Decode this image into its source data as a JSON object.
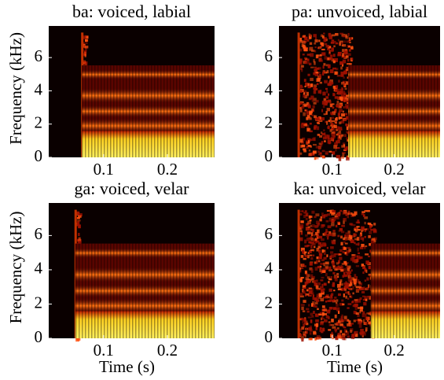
{
  "chart_data": [
    {
      "type": "spectrogram",
      "title": "ba: voiced, labial",
      "y_label": "Frequency (kHz)",
      "xlim": [
        0.014,
        0.274
      ],
      "xticks": [
        0.1,
        0.2
      ],
      "ylim": [
        0,
        7.9
      ],
      "yticks": [
        0,
        2,
        4,
        6
      ]
    },
    {
      "type": "spectrogram",
      "title": "pa: unvoiced, labial",
      "xlim": [
        0.014,
        0.274
      ],
      "xticks": [
        0.1,
        0.2
      ],
      "ylim": [
        0,
        7.9
      ],
      "yticks": [
        0,
        2,
        4,
        6
      ]
    },
    {
      "type": "spectrogram",
      "title": "ga: voiced, velar",
      "y_label": "Frequency (kHz)",
      "x_label": "Time (s)",
      "xlim": [
        0.014,
        0.274
      ],
      "xticks": [
        0.1,
        0.2
      ],
      "ylim": [
        0,
        7.9
      ],
      "yticks": [
        0,
        2,
        4,
        6
      ]
    },
    {
      "type": "spectrogram",
      "title": "ka: unvoiced, velar",
      "x_label": "Time (s)",
      "xlim": [
        0.014,
        0.274
      ],
      "xticks": [
        0.1,
        0.2
      ],
      "ylim": [
        0,
        7.9
      ],
      "yticks": [
        0,
        2,
        4,
        6
      ]
    }
  ]
}
